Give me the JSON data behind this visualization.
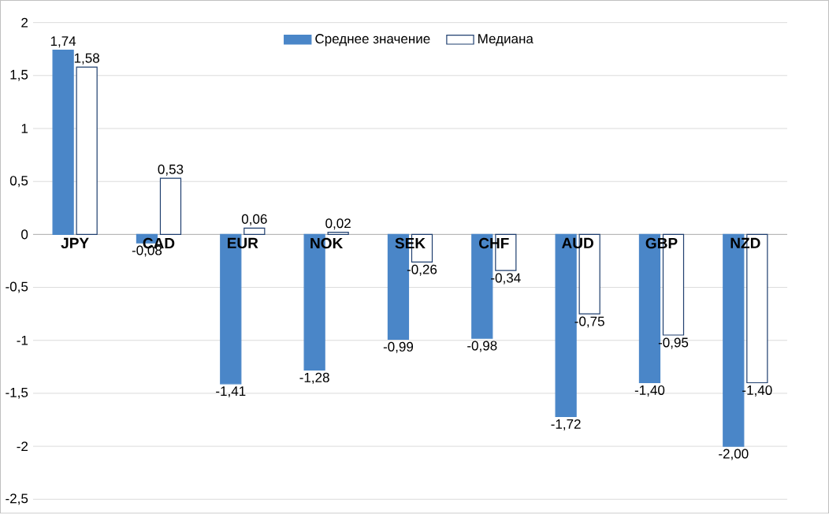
{
  "chart_data": {
    "type": "bar",
    "categories": [
      "JPY",
      "CAD",
      "EUR",
      "NOK",
      "SEK",
      "CHF",
      "AUD",
      "GBP",
      "NZD"
    ],
    "series": [
      {
        "name": "Среднее значение",
        "color": "#4a86c8",
        "values": [
          1.74,
          -0.08,
          -1.41,
          -1.28,
          -0.99,
          -0.98,
          -1.72,
          -1.4,
          -2.0
        ],
        "value_labels": [
          "1,74",
          "-0,08",
          "-1,41",
          "-1,28",
          "-0,99",
          "-0,98",
          "-1,72",
          "-1,40",
          "-2,00"
        ]
      },
      {
        "name": "Медиана",
        "color": "#1f3f6f",
        "values": [
          1.58,
          0.53,
          0.06,
          0.02,
          -0.26,
          -0.34,
          -0.75,
          -0.95,
          -1.4
        ],
        "value_labels": [
          "1,58",
          "0,53",
          "0,06",
          "0,02",
          "-0,26",
          "-0,34",
          "-0,75",
          "-0,95",
          "-1,40"
        ]
      }
    ],
    "ylim": [
      -2.5,
      2
    ],
    "yticks": [
      2,
      {
        "value": 1.5,
        "label": "1,5"
      },
      1,
      {
        "value": 0.5,
        "label": "0,5"
      },
      0,
      {
        "value": -0.5,
        "label": "-0,5"
      },
      -1,
      {
        "value": -1.5,
        "label": "-1,5"
      },
      -2,
      {
        "value": -2.5,
        "label": "-2,5"
      }
    ],
    "grid": "y",
    "legend": "top"
  }
}
